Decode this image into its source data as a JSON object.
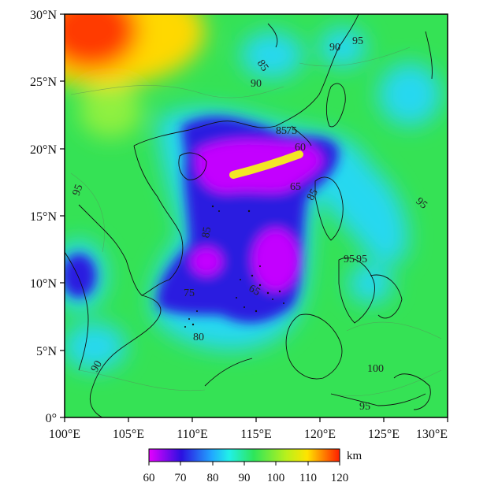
{
  "map": {
    "lat_labels": [
      "0°",
      "5°N",
      "10°N",
      "15°N",
      "20°N",
      "25°N",
      "30°N"
    ],
    "lon_labels": [
      "100°E",
      "105°E",
      "110°E",
      "115°E",
      "120°E",
      "125°E",
      "130°E"
    ],
    "extent": {
      "lon": [
        100,
        130
      ],
      "lat": [
        0,
        30
      ]
    },
    "contour_labels": [
      "95",
      "90",
      "85",
      "90",
      "95",
      "95",
      "85",
      "85",
      "75",
      "60",
      "65",
      "85",
      "95",
      "95",
      "75",
      "65",
      "80",
      "100",
      "95",
      "90"
    ],
    "colors": {
      "low": "#e600ff",
      "mid_low": "#2020e8",
      "mid": "#21e3ff",
      "mid_high": "#2ee65a",
      "high": "#ffe400",
      "max": "#ff1e00",
      "feature": "#f3e626"
    }
  },
  "colorbar": {
    "ticks": [
      "60",
      "70",
      "80",
      "90",
      "100",
      "110",
      "120"
    ],
    "range": [
      60,
      120
    ],
    "unit": "km"
  }
}
